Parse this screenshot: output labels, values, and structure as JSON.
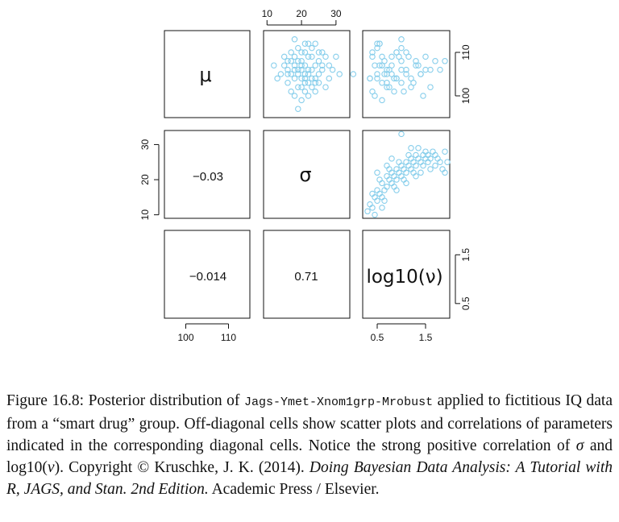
{
  "chart_data": {
    "type": "scatter",
    "layout": "pairs-matrix-3x3",
    "diagonal_labels": [
      "μ",
      "σ",
      "log10(ν)"
    ],
    "correlations": {
      "mu_sigma": "−0.03",
      "mu_lognu": "−0.014",
      "sigma_lognu": "0.71"
    },
    "axes": {
      "mu": {
        "ticks": [
          100,
          110
        ],
        "tick_labels": [
          "100",
          "110"
        ],
        "range": [
          95,
          115
        ]
      },
      "sigma": {
        "ticks": [
          10,
          20,
          30
        ],
        "tick_labels": [
          "10",
          "20",
          "30"
        ],
        "range": [
          9,
          34
        ]
      },
      "lognu": {
        "ticks": [
          0.5,
          1.5
        ],
        "tick_labels": [
          "0.5",
          "1.5"
        ],
        "range": [
          0.2,
          2.0
        ]
      }
    },
    "marker_color": "#87CEEB",
    "panels": [
      {
        "name": "sigma-vs-mu",
        "x_param": "sigma",
        "y_param": "mu",
        "points": [
          [
            20,
            107
          ],
          [
            18,
            104
          ],
          [
            23,
            109
          ],
          [
            16,
            106
          ],
          [
            21,
            103
          ],
          [
            25,
            108
          ],
          [
            19,
            111
          ],
          [
            22,
            105
          ],
          [
            17,
            108
          ],
          [
            24,
            104
          ],
          [
            20,
            102
          ],
          [
            15,
            107
          ],
          [
            26,
            106
          ],
          [
            21,
            110
          ],
          [
            18,
            100
          ],
          [
            23,
            106
          ],
          [
            19,
            105
          ],
          [
            22,
            112
          ],
          [
            16,
            103
          ],
          [
            27,
            109
          ],
          [
            20,
            106
          ],
          [
            24,
            101
          ],
          [
            17,
            110
          ],
          [
            25,
            105
          ],
          [
            21,
            107
          ],
          [
            14,
            105
          ],
          [
            28,
            104
          ],
          [
            19,
            108
          ],
          [
            22,
            103
          ],
          [
            18,
            113
          ],
          [
            23,
            102
          ],
          [
            20,
            104
          ],
          [
            26,
            110
          ],
          [
            15,
            109
          ],
          [
            21,
            101
          ],
          [
            24,
            107
          ],
          [
            17,
            105
          ],
          [
            29,
            106
          ],
          [
            19,
            102
          ],
          [
            22,
            109
          ],
          [
            12,
            107
          ],
          [
            31,
            105
          ],
          [
            20,
            99
          ],
          [
            23,
            111
          ],
          [
            18,
            107
          ],
          [
            21,
            112
          ],
          [
            25,
            103
          ],
          [
            16,
            108
          ],
          [
            27,
            102
          ],
          [
            20,
            110
          ],
          [
            13,
            104
          ],
          [
            30,
            109
          ],
          [
            19,
            106
          ],
          [
            22,
            100
          ],
          [
            24,
            112
          ],
          [
            17,
            101
          ],
          [
            21,
            105
          ],
          [
            26,
            107
          ],
          [
            18,
            109
          ],
          [
            23,
            104
          ],
          [
            20,
            108
          ],
          [
            35,
            105
          ],
          [
            19,
            97
          ],
          [
            22,
            106
          ],
          [
            25,
            110
          ],
          [
            16,
            105
          ],
          [
            28,
            107
          ],
          [
            21,
            104
          ],
          [
            24,
            103
          ],
          [
            18,
            106
          ]
        ]
      },
      {
        "name": "lognu-vs-mu",
        "x_param": "lognu",
        "y_param": "mu",
        "points": [
          [
            0.6,
            107
          ],
          [
            0.9,
            104
          ],
          [
            0.4,
            109
          ],
          [
            1.1,
            106
          ],
          [
            0.7,
            103
          ],
          [
            1.3,
            108
          ],
          [
            0.5,
            111
          ],
          [
            0.8,
            105
          ],
          [
            1.0,
            108
          ],
          [
            0.35,
            104
          ],
          [
            1.2,
            102
          ],
          [
            0.6,
            107
          ],
          [
            1.5,
            106
          ],
          [
            0.9,
            110
          ],
          [
            0.45,
            100
          ],
          [
            0.7,
            106
          ],
          [
            1.4,
            105
          ],
          [
            0.55,
            112
          ],
          [
            1.0,
            103
          ],
          [
            0.8,
            109
          ],
          [
            1.6,
            106
          ],
          [
            0.4,
            101
          ],
          [
            1.1,
            110
          ],
          [
            0.65,
            105
          ],
          [
            1.3,
            107
          ],
          [
            0.5,
            105
          ],
          [
            0.9,
            104
          ],
          [
            1.7,
            108
          ],
          [
            0.6,
            103
          ],
          [
            1.0,
            113
          ],
          [
            0.75,
            102
          ],
          [
            1.2,
            104
          ],
          [
            0.4,
            110
          ],
          [
            1.5,
            109
          ],
          [
            0.85,
            101
          ],
          [
            0.55,
            107
          ],
          [
            1.1,
            105
          ],
          [
            1.8,
            106
          ],
          [
            0.7,
            102
          ],
          [
            0.95,
            109
          ],
          [
            0.45,
            107
          ],
          [
            1.4,
            105
          ],
          [
            0.6,
            99
          ],
          [
            1.0,
            111
          ],
          [
            0.8,
            107
          ],
          [
            0.5,
            112
          ],
          [
            1.25,
            103
          ],
          [
            0.65,
            108
          ],
          [
            1.6,
            102
          ],
          [
            0.9,
            110
          ],
          [
            0.35,
            104
          ],
          [
            1.15,
            109
          ],
          [
            0.75,
            106
          ],
          [
            1.45,
            100
          ],
          [
            0.55,
            112
          ],
          [
            1.05,
            101
          ],
          [
            0.7,
            105
          ],
          [
            1.35,
            107
          ],
          [
            0.6,
            109
          ],
          [
            0.85,
            104
          ],
          [
            1.9,
            108
          ],
          [
            1.0,
            106
          ],
          [
            0.5,
            104
          ]
        ]
      },
      {
        "name": "lognu-vs-sigma",
        "x_param": "lognu",
        "y_param": "sigma",
        "points": [
          [
            0.3,
            11
          ],
          [
            0.35,
            13
          ],
          [
            0.4,
            12
          ],
          [
            0.45,
            15
          ],
          [
            0.5,
            14
          ],
          [
            0.5,
            17
          ],
          [
            0.55,
            16
          ],
          [
            0.6,
            15
          ],
          [
            0.6,
            19
          ],
          [
            0.65,
            17
          ],
          [
            0.7,
            18
          ],
          [
            0.7,
            21
          ],
          [
            0.75,
            20
          ],
          [
            0.8,
            19
          ],
          [
            0.8,
            22
          ],
          [
            0.85,
            21
          ],
          [
            0.9,
            20
          ],
          [
            0.9,
            23
          ],
          [
            0.95,
            22
          ],
          [
            1.0,
            21
          ],
          [
            1.0,
            24
          ],
          [
            1.05,
            23
          ],
          [
            1.1,
            22
          ],
          [
            1.1,
            25
          ],
          [
            1.15,
            24
          ],
          [
            1.2,
            23
          ],
          [
            1.2,
            26
          ],
          [
            1.25,
            25
          ],
          [
            1.3,
            24
          ],
          [
            1.3,
            27
          ],
          [
            1.35,
            26
          ],
          [
            1.4,
            25
          ],
          [
            1.45,
            27
          ],
          [
            1.5,
            26
          ],
          [
            1.5,
            28
          ],
          [
            1.55,
            27
          ],
          [
            1.6,
            26
          ],
          [
            1.65,
            28
          ],
          [
            1.7,
            27
          ],
          [
            1.75,
            26
          ],
          [
            1.8,
            25
          ],
          [
            1.85,
            23
          ],
          [
            1.9,
            22
          ],
          [
            1.95,
            25
          ],
          [
            0.4,
            16
          ],
          [
            0.55,
            20
          ],
          [
            0.65,
            14
          ],
          [
            0.75,
            23
          ],
          [
            0.85,
            18
          ],
          [
            0.95,
            25
          ],
          [
            1.05,
            20
          ],
          [
            1.15,
            27
          ],
          [
            1.25,
            22
          ],
          [
            1.35,
            29
          ],
          [
            1.45,
            24
          ],
          [
            1.55,
            25
          ],
          [
            1.0,
            33
          ],
          [
            0.45,
            10
          ],
          [
            0.6,
            12
          ],
          [
            0.9,
            17
          ],
          [
            1.1,
            19
          ],
          [
            1.3,
            21
          ],
          [
            1.6,
            23
          ],
          [
            0.7,
            24
          ],
          [
            0.5,
            22
          ],
          [
            1.2,
            29
          ],
          [
            1.4,
            22
          ],
          [
            0.8,
            26
          ],
          [
            1.7,
            24
          ],
          [
            1.9,
            28
          ]
        ]
      }
    ]
  },
  "caption": {
    "label": "Figure 16.8:",
    "text1": " Posterior distribution of ",
    "code": "Jags-Ymet-Xnom1grp-Mrobust",
    "text2": " applied to fictitious IQ data from a “smart drug” group. Off-diagonal cells show scatter plots and correlations of parameters indicated in the corresponding diagonal cells. Notice the strong positive correlation of ",
    "sym_sigma": "σ",
    "text3": " and log10(",
    "sym_nu": "ν",
    "text4": ").   Copyright © Kruschke, J. K. (2014). ",
    "book_title": "Doing Bayesian Data Analysis: A Tutorial with R, JAGS, and Stan. 2nd Edition.",
    "text5": " Academic Press / Elsevier."
  }
}
